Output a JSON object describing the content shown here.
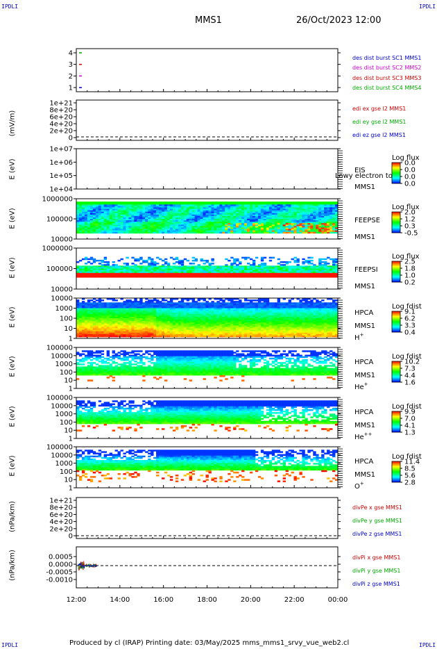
{
  "corners": {
    "tl": "IPDLI",
    "tr": "IPDLI",
    "bl": "IPDLI",
    "br": "IPDLI"
  },
  "header": {
    "spacecraft": "MMS1",
    "datetime": "26/Oct/2023 12:00"
  },
  "footer": "Produced by cl (IRAP)   Printing date: 03/May/2025   mms_mms1_srvy_vue_web2.cl",
  "colors": {
    "blue": "#0000cc",
    "magenta": "#cc00cc",
    "red": "#cc0000",
    "green": "#00aa00"
  },
  "chart_data": [
    {
      "type": "timeline",
      "id": "burst",
      "yticks": [
        "4",
        "3",
        "2",
        "1"
      ],
      "labels": [
        {
          "text": "des dist burst SC1 MMS1",
          "color": "#0000cc"
        },
        {
          "text": "des dist burst SC2 MMS2",
          "color": "#cc00cc"
        },
        {
          "text": "des dist burst SC3 MMS3",
          "color": "#cc0000"
        },
        {
          "text": "des dist burst SC4 MMS4",
          "color": "#00aa00"
        }
      ]
    },
    {
      "type": "line",
      "id": "edi",
      "ylabel": "(mV/m)",
      "yticks": [
        "1e+21",
        "8e+20",
        "6e+20",
        "4e+20",
        "2e+20",
        "0"
      ],
      "labels": [
        {
          "text": "edi ex gse l2 MMS1",
          "color": "#cc0000"
        },
        {
          "text": "edi ey gse l2 MMS1",
          "color": "#00aa00"
        },
        {
          "text": "edi ez gse l2 MMS1",
          "color": "#0000cc"
        }
      ]
    },
    {
      "type": "heatmap",
      "id": "eis",
      "ylabel": "E (eV)",
      "yticks": [
        "1e+07",
        "1e+06",
        "1e+05",
        "1e+04"
      ],
      "inst": [
        "EIS",
        "MMS1"
      ],
      "overlay": "Lowy electron to",
      "cbtitle": "Log flux",
      "cbticks": [
        "0.0",
        "0.0",
        "0.0",
        "0.0"
      ]
    },
    {
      "type": "heatmap",
      "id": "feepse",
      "ylabel": "E (eV)",
      "yticks": [
        "1000000",
        "100000",
        "10000"
      ],
      "inst": [
        "FEEPSE",
        "MMS1"
      ],
      "cbtitle": "Log flux",
      "cbticks": [
        "2.0",
        "1.2",
        "0.3",
        "-0.5"
      ]
    },
    {
      "type": "heatmap",
      "id": "feepsi",
      "ylabel": "E (eV)",
      "yticks": [
        "1000000",
        "100000",
        "10000"
      ],
      "inst": [
        "FEEPSI",
        "MMS1"
      ],
      "cbtitle": "Log flux",
      "cbticks": [
        "2.5",
        "1.8",
        "1.0",
        "0.2"
      ]
    },
    {
      "type": "heatmap",
      "id": "hpca-h",
      "ylabel": "E (eV)",
      "yticks": [
        "10000",
        "1000",
        "100",
        "10",
        "1"
      ],
      "inst": [
        "HPCA",
        "MMS1",
        "H+"
      ],
      "cbtitle": "Log fdist",
      "cbticks": [
        "9.1",
        "6.2",
        "3.3",
        "0.4"
      ]
    },
    {
      "type": "heatmap",
      "id": "hpca-he",
      "ylabel": "E (eV)",
      "yticks": [
        "100000",
        "10000",
        "1000",
        "100",
        "10",
        "1"
      ],
      "inst": [
        "HPCA",
        "MMS1",
        "He+"
      ],
      "cbtitle": "Log fdist",
      "cbticks": [
        "10.2",
        "7.3",
        "4.4",
        "1.6"
      ]
    },
    {
      "type": "heatmap",
      "id": "hpca-hepp",
      "ylabel": "E (eV)",
      "yticks": [
        "100000",
        "10000",
        "1000",
        "100",
        "10",
        "1"
      ],
      "inst": [
        "HPCA",
        "MMS1",
        "He++"
      ],
      "cbtitle": "Log fdist",
      "cbticks": [
        "9.9",
        "7.0",
        "4.1",
        "1.3"
      ]
    },
    {
      "type": "heatmap",
      "id": "hpca-o",
      "ylabel": "E (eV)",
      "yticks": [
        "100000",
        "10000",
        "1000",
        "100",
        "10",
        "1"
      ],
      "inst": [
        "HPCA",
        "MMS1",
        "O+"
      ],
      "cbtitle": "Log fdist",
      "cbticks": [
        "11.4",
        "8.5",
        "5.6",
        "2.8"
      ]
    },
    {
      "type": "line",
      "id": "divpe",
      "ylabel": "(nPa/km)",
      "yticks": [
        "1e+21",
        "8e+20",
        "6e+20",
        "4e+20",
        "2e+20",
        "0"
      ],
      "labels": [
        {
          "text": "divPe x gse MMS1",
          "color": "#cc0000"
        },
        {
          "text": "divPe y gse MMS1",
          "color": "#00aa00"
        },
        {
          "text": "divPe z gse MMS1",
          "color": "#0000cc"
        }
      ]
    },
    {
      "type": "line",
      "id": "divpi",
      "ylabel": "(nPa/km)",
      "yticks": [
        "0.0005",
        "0.0000",
        "-0.0005",
        "-0.0010"
      ],
      "labels": [
        {
          "text": "divPi x gse MMS1",
          "color": "#cc0000"
        },
        {
          "text": "divPi y gse MMS1",
          "color": "#00aa00"
        },
        {
          "text": "divPi z gse MMS1",
          "color": "#0000cc"
        }
      ]
    }
  ],
  "xaxis": {
    "ticks": [
      "12:00",
      "14:00",
      "16:00",
      "18:00",
      "20:00",
      "22:00",
      "00:00"
    ]
  }
}
